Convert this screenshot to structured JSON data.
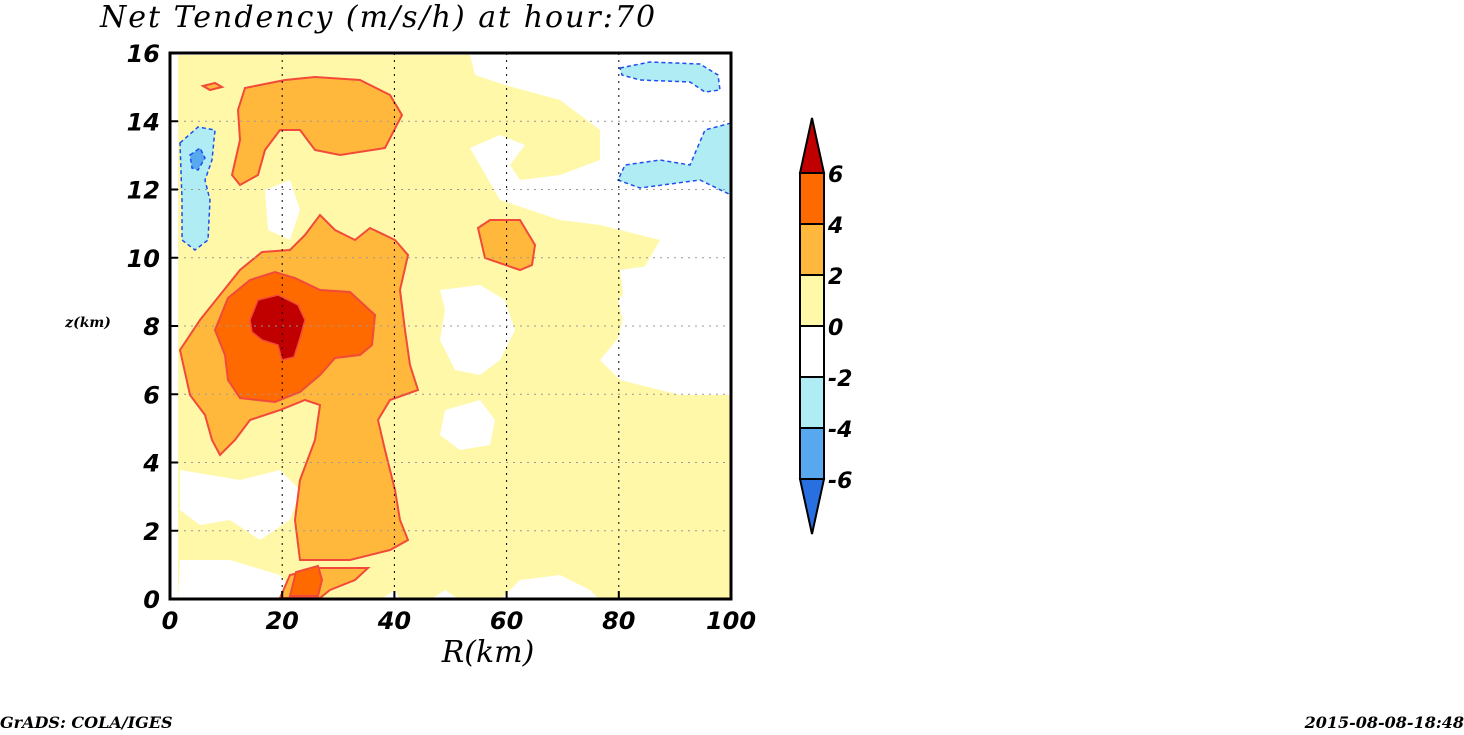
{
  "chart_data": {
    "type": "heatmap",
    "title": "Net Tendency (m/s/h) at hour:70",
    "xlabel": "R(km)",
    "ylabel": "z(km)",
    "xlim": [
      0,
      100
    ],
    "ylim": [
      0,
      16
    ],
    "x_ticks": [
      "0",
      "20",
      "40",
      "60",
      "80",
      "100"
    ],
    "y_ticks": [
      "0",
      "2",
      "4",
      "6",
      "8",
      "10",
      "12",
      "14",
      "16"
    ],
    "grid": true,
    "colorbar": {
      "levels": [
        "6",
        "4",
        "2",
        "0",
        "-2",
        "-4",
        "-6"
      ],
      "bins": [
        {
          "range": "> 6",
          "color": "#c00000"
        },
        {
          "range": "4 to 6",
          "color": "#ff6a00"
        },
        {
          "range": "2 to 4",
          "color": "#ffb83c"
        },
        {
          "range": "0 to 2",
          "color": "#fff8a8"
        },
        {
          "range": "-2 to 0",
          "color": "#ffffff"
        },
        {
          "range": "-4 to -2",
          "color": "#b0ecf4"
        },
        {
          "range": "-6 to -4",
          "color": "#58a8f0"
        },
        {
          "range": "< -6",
          "color": "#2870e0"
        }
      ]
    },
    "regions": [
      {
        "name": "positive tendency core",
        "level": "> 6",
        "center_r_km": 19,
        "center_z_km": 8
      },
      {
        "name": "positive tendency ring",
        "level": "4 to 6",
        "center_r_km": 20,
        "center_z_km": 7.8
      },
      {
        "name": "upper maximum",
        "level": "2 to 4",
        "center_r_km": 28,
        "center_z_km": 14
      },
      {
        "name": "negative tendency near axis",
        "level": "-4 to -2",
        "center_r_km": 4,
        "center_z_km": 12
      },
      {
        "name": "negative tendency outer upper",
        "level": "-4 to -2",
        "center_r_km": 90,
        "center_z_km": 13
      }
    ]
  },
  "footer": {
    "left": "GrADS: COLA/IGES",
    "right": "2015-08-08-18:48"
  }
}
